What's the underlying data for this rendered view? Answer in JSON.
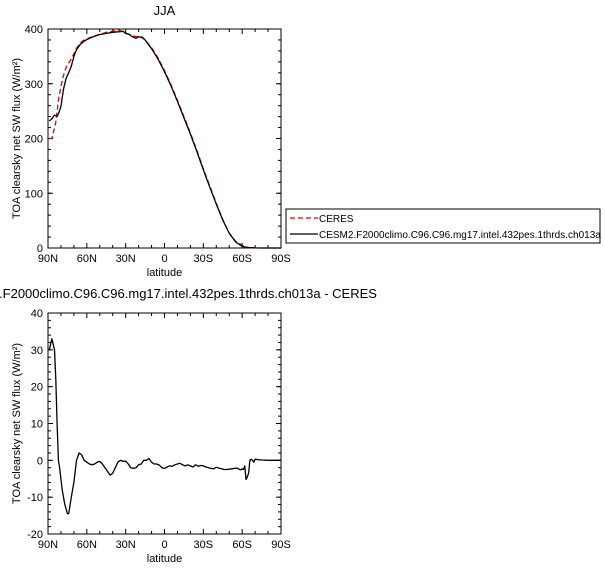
{
  "chart_data": [
    {
      "type": "line",
      "title": "JJA",
      "xlabel": "latitude",
      "ylabel": "TOA clearsky net SW flux (W/m²)",
      "xlim": [
        90,
        -90
      ],
      "ylim": [
        0,
        400
      ],
      "xticks": [
        90,
        60,
        30,
        0,
        -30,
        -60,
        -90
      ],
      "xtick_labels": [
        "90N",
        "60N",
        "30N",
        "0",
        "30S",
        "60S",
        "90S"
      ],
      "yticks": [
        0,
        100,
        200,
        300,
        400
      ],
      "ytick_labels": [
        "0",
        "100",
        "200",
        "300",
        "400"
      ],
      "legend_position": "right",
      "series": [
        {
          "name": "CERES",
          "color": "#e00000",
          "dash": "dashed",
          "x": [
            89,
            87,
            84,
            82,
            80,
            78,
            76,
            74,
            72,
            70,
            68,
            65,
            62,
            58,
            55,
            50,
            45,
            40,
            35,
            32,
            30,
            27,
            25,
            22,
            20,
            17,
            15,
            10,
            5,
            0,
            -5,
            -10,
            -15,
            -20,
            -25,
            -30,
            -35,
            -40,
            -45,
            -50,
            -55,
            -60,
            -63,
            -65,
            -68,
            -70,
            -75,
            -80,
            -85,
            -90
          ],
          "y": [
            200,
            200,
            230,
            270,
            295,
            315,
            330,
            338,
            345,
            355,
            365,
            375,
            380,
            384,
            387,
            390,
            394,
            396,
            398,
            394,
            392,
            390,
            388,
            386,
            387,
            385,
            380,
            366,
            347,
            324,
            298,
            270,
            240,
            210,
            178,
            145,
            113,
            82,
            52,
            27,
            12,
            5,
            2,
            1,
            0.5,
            0.2,
            0,
            0,
            0,
            0
          ]
        },
        {
          "name": "CESM2.F2000climo.C96.C96.mg17.intel.432pes.1thrds.ch013a",
          "color": "#000000",
          "dash": "solid",
          "x": [
            89,
            87,
            85,
            83,
            82,
            80,
            78,
            76,
            74,
            72,
            70,
            68,
            65,
            62,
            58,
            55,
            50,
            45,
            40,
            35,
            32,
            30,
            27,
            25,
            22,
            20,
            17,
            15,
            10,
            5,
            0,
            -5,
            -10,
            -15,
            -20,
            -25,
            -30,
            -35,
            -40,
            -45,
            -50,
            -55,
            -60,
            -63,
            -65,
            -68,
            -70,
            -75,
            -80,
            -85,
            -90
          ],
          "y": [
            232,
            236,
            243,
            240,
            245,
            258,
            290,
            310,
            320,
            332,
            350,
            362,
            372,
            378,
            383,
            386,
            390,
            392,
            394,
            395,
            396,
            392,
            390,
            386,
            383,
            386,
            384,
            380,
            364,
            345,
            322,
            296,
            268,
            238,
            208,
            176,
            143,
            111,
            80,
            51,
            27,
            11,
            3,
            1.5,
            1,
            0.5,
            0.2,
            0,
            0,
            0,
            0
          ]
        }
      ]
    },
    {
      "type": "line",
      "title": ".F2000climo.C96.C96.mg17.intel.432pes.1thrds.ch013a - CERES",
      "xlabel": "latitude",
      "ylabel": "TOA clearsky net SW flux (W/m²)",
      "xlim": [
        90,
        -90
      ],
      "ylim": [
        -20,
        40
      ],
      "xticks": [
        90,
        60,
        30,
        0,
        -30,
        -60,
        -90
      ],
      "xtick_labels": [
        "90N",
        "60N",
        "30N",
        "0",
        "30S",
        "60S",
        "90S"
      ],
      "yticks": [
        -20,
        -10,
        0,
        10,
        20,
        30,
        40
      ],
      "ytick_labels": [
        "-20",
        "-10",
        "0",
        "10",
        "20",
        "30",
        "40"
      ],
      "series": [
        {
          "color": "#000000",
          "dash": "solid",
          "x": [
            89,
            87,
            85,
            84,
            83,
            82,
            81,
            79,
            77,
            75,
            74,
            72,
            70,
            68,
            66,
            64,
            62,
            60,
            58,
            56,
            54,
            52,
            50,
            48,
            46,
            44,
            42,
            40,
            38,
            36,
            34,
            32,
            30,
            28,
            26,
            24,
            22,
            20,
            18,
            16,
            14,
            12,
            10,
            8,
            6,
            4,
            2,
            0,
            -2,
            -4,
            -6,
            -8,
            -10,
            -12,
            -14,
            -16,
            -18,
            -20,
            -22,
            -24,
            -26,
            -28,
            -30,
            -32,
            -34,
            -36,
            -38,
            -40,
            -42,
            -44,
            -46,
            -48,
            -50,
            -52,
            -54,
            -56,
            -58,
            -59,
            -60,
            -61,
            -62,
            -63,
            -64,
            -65,
            -66,
            -67,
            -68,
            -69,
            -70,
            -72,
            -75,
            -80,
            -85,
            -90
          ],
          "y": [
            30,
            33,
            30,
            22,
            10,
            0,
            -2,
            -8,
            -12,
            -14.5,
            -14.5,
            -10,
            -6,
            0,
            2,
            1.5,
            0,
            -0.5,
            -1,
            -1.2,
            -1,
            -0.5,
            -0.3,
            -1,
            -2,
            -3,
            -4,
            -3.5,
            -2,
            -0.5,
            0,
            -0.3,
            -0.2,
            -1,
            -2,
            -2.2,
            -2,
            -1.2,
            -1,
            0,
            0,
            0.5,
            -0.5,
            -1,
            -1,
            -1.3,
            -2,
            -2.2,
            -1.8,
            -1.5,
            -1.6,
            -1.2,
            -1,
            -0.8,
            -1.2,
            -1.5,
            -1.2,
            -1.5,
            -1.8,
            -1.2,
            -1.6,
            -1.4,
            -1.5,
            -1.8,
            -2,
            -2.2,
            -2.3,
            -1.9,
            -2.1,
            -2.3,
            -2.5,
            -2.5,
            -2.4,
            -2.3,
            -2.2,
            -2.1,
            -2.5,
            -2.6,
            -2.3,
            -2.5,
            -1.5,
            -5.2,
            -4.5,
            -3.5,
            0,
            0.3,
            0,
            -0.5,
            0.3,
            0.2,
            0.1,
            0,
            0,
            0
          ]
        }
      ]
    }
  ]
}
